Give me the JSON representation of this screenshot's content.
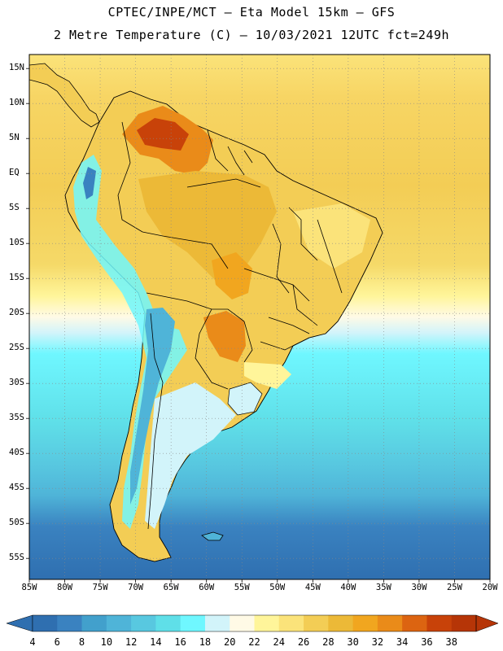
{
  "header": {
    "line1": "CPTEC/INPE/MCT –  Eta Model 15km – GFS",
    "line2": "2 Metre Temperature (C) – 10/03/2021 12UTC fct=249h"
  },
  "axes": {
    "lat_labels": [
      "15N",
      "10N",
      "5N",
      "EQ",
      "5S",
      "10S",
      "15S",
      "20S",
      "25S",
      "30S",
      "35S",
      "40S",
      "45S",
      "50S",
      "55S"
    ],
    "lon_labels": [
      "85W",
      "80W",
      "75W",
      "70W",
      "65W",
      "60W",
      "55W",
      "50W",
      "45W",
      "40W",
      "35W",
      "30W",
      "25W",
      "20W"
    ]
  },
  "colorbar": {
    "labels": [
      "4",
      "6",
      "8",
      "10",
      "12",
      "14",
      "16",
      "18",
      "20",
      "22",
      "24",
      "26",
      "28",
      "30",
      "32",
      "34",
      "36",
      "38"
    ],
    "colors": [
      "#2f6fb0",
      "#3a82c0",
      "#42a0cc",
      "#4fb4d8",
      "#58c8e0",
      "#5fdfe8",
      "#6ff7ff",
      "#d2f4fa",
      "#fffae6",
      "#fff59a",
      "#fbe37a",
      "#f3cd55",
      "#ecb937",
      "#f1a61f",
      "#ea8b19",
      "#dc6411",
      "#c84209",
      "#b63507"
    ]
  },
  "map": {
    "lon_range": [
      -85,
      -20
    ],
    "lat_range": [
      -58,
      17
    ],
    "grid": "dotted",
    "gridline_lons": [
      -85,
      -80,
      -75,
      -70,
      -65,
      -60,
      -55,
      -50,
      -45,
      -40,
      -35,
      -30,
      -25,
      -20
    ],
    "gridline_lats": [
      15,
      10,
      5,
      0,
      -5,
      -10,
      -15,
      -20,
      -25,
      -30,
      -35,
      -40,
      -45,
      -50,
      -55
    ]
  }
}
